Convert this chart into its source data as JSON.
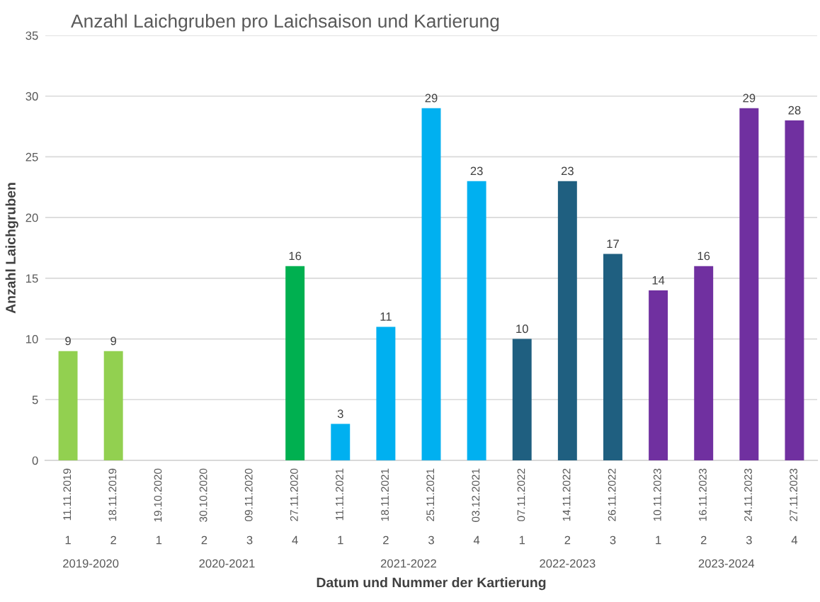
{
  "chart_data": {
    "type": "bar",
    "title": "Anzahl Laichgruben pro Laichsaison und Kartierung",
    "xlabel": "Datum und Nummer der Kartierung",
    "ylabel": "Anzahl Laichgruben",
    "categories": [
      "11.11.2019",
      "18.11.2019",
      "19.10.2020",
      "30.10.2020",
      "09.11.2020",
      "27.11.2020",
      "11.11.2021",
      "18.11.2021",
      "25.11.2021",
      "03.12.2021",
      "07.11.2022",
      "14.11.2022",
      "26.11.2022",
      "10.11.2023",
      "16.11.2023",
      "24.11.2023",
      "27.11.2023"
    ],
    "values": [
      9,
      9,
      null,
      null,
      null,
      16,
      3,
      11,
      29,
      23,
      10,
      23,
      17,
      14,
      16,
      29,
      28
    ],
    "colors": [
      "#92d050",
      "#92d050",
      "#00b050",
      "#00b050",
      "#00b050",
      "#00b050",
      "#00b0f0",
      "#00b0f0",
      "#00b0f0",
      "#00b0f0",
      "#1f5f80",
      "#1f5f80",
      "#1f5f80",
      "#7030a0",
      "#7030a0",
      "#7030a0",
      "#7030a0"
    ],
    "annotations": [
      "1",
      "2",
      "1",
      "2",
      "3",
      "4",
      "1",
      "2",
      "3",
      "4",
      "1",
      "2",
      "3",
      "1",
      "2",
      "3",
      "4",
      "2019-2020",
      "2020-2021",
      "2021-2022",
      "2022-2023",
      "2023-2024"
    ],
    "data_labels": true,
    "ylim": [
      0,
      35
    ],
    "yticks": [
      0,
      5,
      10,
      15,
      20,
      25,
      30,
      35
    ],
    "grid": "y",
    "legend": false
  }
}
